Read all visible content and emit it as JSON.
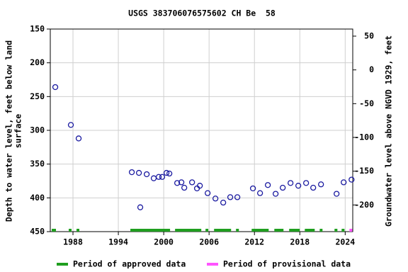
{
  "chart_data": {
    "type": "scatter",
    "title": "USGS 383706076575602 CH Be  58",
    "y_label": [
      "Depth to water level, feet below land",
      "surface"
    ],
    "y2_label": "Groundwater level above NGVD 1929, feet",
    "xlim": [
      1985,
      2025
    ],
    "xticks": [
      1988,
      1994,
      2000,
      2006,
      2012,
      2018,
      2024
    ],
    "ylim": [
      150,
      450
    ],
    "yticks": [
      150,
      200,
      250,
      300,
      350,
      400,
      450
    ],
    "y2lim": [
      60.5,
      -239.5
    ],
    "y2ticks": [
      50,
      0,
      -50,
      -100,
      -150,
      -200
    ],
    "grid": true,
    "series": [
      {
        "name": "Depth to water level",
        "color": "#1a1aa0",
        "x": [
          1985.66,
          1987.72,
          1988.75,
          1995.78,
          1996.72,
          1996.9,
          1997.75,
          1998.68,
          1999.34,
          1999.8,
          2000.37,
          2000.75,
          2001.78,
          2002.34,
          2002.72,
          2003.75,
          2004.4,
          2004.78,
          2005.81,
          2006.84,
          2007.87,
          2008.8,
          2009.74,
          2011.8,
          2012.74,
          2013.77,
          2014.8,
          2015.74,
          2016.77,
          2017.8,
          2018.83,
          2019.77,
          2020.8,
          2022.86,
          2023.8,
          2024.84
        ],
        "values": [
          236,
          292,
          312,
          362,
          363,
          414,
          365,
          371,
          369,
          369,
          363,
          364,
          378,
          377,
          385,
          377,
          386,
          382,
          393,
          401,
          407,
          399,
          399,
          386,
          393,
          381,
          394,
          385,
          378,
          382,
          378,
          385,
          380,
          394,
          377,
          373
        ]
      }
    ],
    "periods": [
      {
        "name": "Period of approved data",
        "color": "#1f9e1f",
        "ranges": [
          [
            1985.19,
            1985.75
          ],
          [
            1987.44,
            1987.81
          ],
          [
            1988.47,
            1988.84
          ],
          [
            1995.59,
            2000.84
          ],
          [
            2001.5,
            2004.97
          ],
          [
            2005.53,
            2005.9
          ],
          [
            2006.66,
            2008.91
          ],
          [
            2009.56,
            2009.94
          ],
          [
            2011.63,
            2013.88
          ],
          [
            2014.63,
            2015.84
          ],
          [
            2016.59,
            2017.99
          ],
          [
            2018.66,
            2019.97
          ],
          [
            2020.63,
            2021
          ],
          [
            2022.59,
            2022.97
          ],
          [
            2023.53,
            2023.91
          ]
        ]
      },
      {
        "name": "Period of provisional data",
        "color": "#ff55ff",
        "ranges": [
          [
            2024.56,
            2024.94
          ]
        ]
      }
    ]
  }
}
